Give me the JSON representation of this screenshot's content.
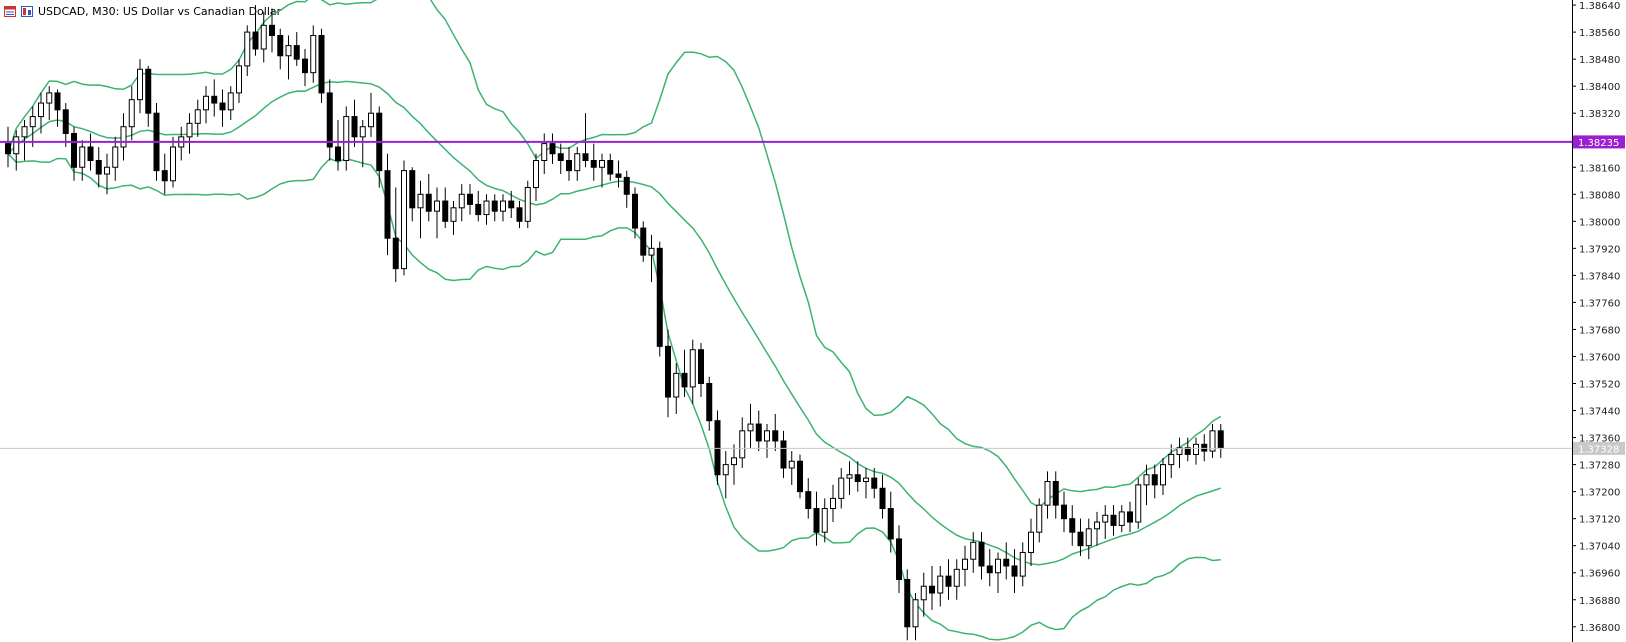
{
  "header": {
    "symbol": "USDCAD",
    "timeframe": "M30",
    "title": "USDCAD, M30:  US Dollar vs Canadian Dollar"
  },
  "colors": {
    "background": "#ffffff",
    "candle": "#000000",
    "bollinger": "#3cb371",
    "hline": "#9b1fd1",
    "current_price_line": "#c8c8c8"
  },
  "chart_data": {
    "type": "candlestick",
    "title": "",
    "xlabel": "",
    "ylabel": "",
    "ylim": [
      1.36755,
      1.38655
    ],
    "y_ticks": [
      "1.38640",
      "1.38560",
      "1.38480",
      "1.38400",
      "1.38320",
      "1.38160",
      "1.38080",
      "1.38000",
      "1.37920",
      "1.37840",
      "1.37760",
      "1.37680",
      "1.37600",
      "1.37520",
      "1.37440",
      "1.37360",
      "1.37280",
      "1.37200",
      "1.37120",
      "1.37040",
      "1.36960",
      "1.36880",
      "1.36800"
    ],
    "horizontal_line": {
      "price": 1.38235,
      "label": "1.38235"
    },
    "current_price": {
      "price": 1.37328,
      "label": "1.37328"
    },
    "indicator": "Bollinger Bands",
    "candles": [
      [
        1.3823,
        1.3828,
        1.3816,
        1.382
      ],
      [
        1.382,
        1.3827,
        1.3815,
        1.3825
      ],
      [
        1.3825,
        1.383,
        1.3818,
        1.3828
      ],
      [
        1.3828,
        1.3834,
        1.3822,
        1.3831
      ],
      [
        1.3831,
        1.3838,
        1.3826,
        1.3835
      ],
      [
        1.3835,
        1.384,
        1.383,
        1.3838
      ],
      [
        1.3838,
        1.3839,
        1.3828,
        1.3833
      ],
      [
        1.3833,
        1.3835,
        1.3822,
        1.3826
      ],
      [
        1.3826,
        1.3828,
        1.3812,
        1.3816
      ],
      [
        1.3816,
        1.3824,
        1.3812,
        1.3822
      ],
      [
        1.3822,
        1.3826,
        1.3815,
        1.3818
      ],
      [
        1.3818,
        1.3822,
        1.381,
        1.3814
      ],
      [
        1.3814,
        1.382,
        1.3808,
        1.3816
      ],
      [
        1.3816,
        1.3825,
        1.3812,
        1.3822
      ],
      [
        1.3822,
        1.3832,
        1.3818,
        1.3828
      ],
      [
        1.3828,
        1.384,
        1.3824,
        1.3836
      ],
      [
        1.3836,
        1.3848,
        1.3832,
        1.3845
      ],
      [
        1.3845,
        1.3846,
        1.3828,
        1.3832
      ],
      [
        1.3832,
        1.3835,
        1.3812,
        1.3815
      ],
      [
        1.3815,
        1.382,
        1.3808,
        1.3812
      ],
      [
        1.3812,
        1.3825,
        1.381,
        1.3822
      ],
      [
        1.3822,
        1.3828,
        1.3818,
        1.3825
      ],
      [
        1.3825,
        1.3832,
        1.382,
        1.3829
      ],
      [
        1.3829,
        1.3836,
        1.3825,
        1.3833
      ],
      [
        1.3833,
        1.384,
        1.3829,
        1.3837
      ],
      [
        1.3837,
        1.3842,
        1.3831,
        1.3835
      ],
      [
        1.3835,
        1.3839,
        1.3828,
        1.3833
      ],
      [
        1.3833,
        1.384,
        1.383,
        1.3838
      ],
      [
        1.3838,
        1.3848,
        1.3835,
        1.3846
      ],
      [
        1.3846,
        1.3858,
        1.3843,
        1.3856
      ],
      [
        1.3856,
        1.3864,
        1.3849,
        1.3851
      ],
      [
        1.3851,
        1.3862,
        1.3847,
        1.3858
      ],
      [
        1.3858,
        1.3863,
        1.385,
        1.3855
      ],
      [
        1.3855,
        1.3857,
        1.3845,
        1.3849
      ],
      [
        1.3849,
        1.3855,
        1.3842,
        1.3852
      ],
      [
        1.3852,
        1.3856,
        1.3846,
        1.3848
      ],
      [
        1.3848,
        1.3851,
        1.384,
        1.3844
      ],
      [
        1.3844,
        1.3858,
        1.3841,
        1.3855
      ],
      [
        1.3855,
        1.3857,
        1.3835,
        1.3838
      ],
      [
        1.3838,
        1.3842,
        1.3818,
        1.3822
      ],
      [
        1.3822,
        1.383,
        1.3815,
        1.3818
      ],
      [
        1.3818,
        1.3834,
        1.3815,
        1.3831
      ],
      [
        1.3831,
        1.3836,
        1.3822,
        1.3825
      ],
      [
        1.3825,
        1.383,
        1.3816,
        1.3828
      ],
      [
        1.3828,
        1.3838,
        1.3825,
        1.3832
      ],
      [
        1.3832,
        1.3834,
        1.381,
        1.3815
      ],
      [
        1.3815,
        1.382,
        1.379,
        1.3795
      ],
      [
        1.3795,
        1.381,
        1.3782,
        1.3786
      ],
      [
        1.3786,
        1.3818,
        1.3784,
        1.3815
      ],
      [
        1.3815,
        1.3816,
        1.38,
        1.3804
      ],
      [
        1.3804,
        1.3812,
        1.3795,
        1.3808
      ],
      [
        1.3808,
        1.3814,
        1.38,
        1.3803
      ],
      [
        1.3803,
        1.381,
        1.3795,
        1.3806
      ],
      [
        1.3806,
        1.381,
        1.3798,
        1.38
      ],
      [
        1.38,
        1.3806,
        1.3796,
        1.3804
      ],
      [
        1.3804,
        1.3811,
        1.38,
        1.3808
      ],
      [
        1.3808,
        1.3811,
        1.3802,
        1.3805
      ],
      [
        1.3805,
        1.3809,
        1.38,
        1.3802
      ],
      [
        1.3802,
        1.3808,
        1.3799,
        1.3806
      ],
      [
        1.3806,
        1.3808,
        1.38,
        1.3803
      ],
      [
        1.3803,
        1.3808,
        1.38,
        1.3806
      ],
      [
        1.3806,
        1.3809,
        1.3801,
        1.3804
      ],
      [
        1.3804,
        1.3806,
        1.3798,
        1.38
      ],
      [
        1.38,
        1.3812,
        1.3798,
        1.381
      ],
      [
        1.381,
        1.382,
        1.3806,
        1.3818
      ],
      [
        1.3818,
        1.3826,
        1.3814,
        1.3823
      ],
      [
        1.3823,
        1.3826,
        1.3817,
        1.382
      ],
      [
        1.382,
        1.3823,
        1.3814,
        1.3818
      ],
      [
        1.3818,
        1.3822,
        1.3812,
        1.3815
      ],
      [
        1.3815,
        1.3822,
        1.3812,
        1.382
      ],
      [
        1.382,
        1.3832,
        1.3816,
        1.3818
      ],
      [
        1.3818,
        1.3823,
        1.3812,
        1.3816
      ],
      [
        1.3816,
        1.382,
        1.381,
        1.3818
      ],
      [
        1.3818,
        1.382,
        1.3812,
        1.3814
      ],
      [
        1.3814,
        1.3818,
        1.381,
        1.3813
      ],
      [
        1.3813,
        1.3815,
        1.3804,
        1.3808
      ],
      [
        1.3808,
        1.381,
        1.3795,
        1.3798
      ],
      [
        1.3798,
        1.38,
        1.3788,
        1.379
      ],
      [
        1.379,
        1.3796,
        1.3782,
        1.3792
      ],
      [
        1.3792,
        1.3794,
        1.376,
        1.3763
      ],
      [
        1.3763,
        1.3768,
        1.3742,
        1.3748
      ],
      [
        1.3748,
        1.3758,
        1.3743,
        1.3755
      ],
      [
        1.3755,
        1.3762,
        1.3748,
        1.3751
      ],
      [
        1.3751,
        1.3765,
        1.3746,
        1.3762
      ],
      [
        1.3762,
        1.3764,
        1.3748,
        1.3752
      ],
      [
        1.3752,
        1.3754,
        1.3738,
        1.3741
      ],
      [
        1.3741,
        1.3744,
        1.3722,
        1.3725
      ],
      [
        1.3725,
        1.3732,
        1.3718,
        1.3728
      ],
      [
        1.3728,
        1.3734,
        1.3722,
        1.373
      ],
      [
        1.373,
        1.3742,
        1.3727,
        1.3738
      ],
      [
        1.3738,
        1.3746,
        1.3733,
        1.374
      ],
      [
        1.374,
        1.3744,
        1.3732,
        1.3735
      ],
      [
        1.3735,
        1.374,
        1.373,
        1.3738
      ],
      [
        1.3738,
        1.3743,
        1.3732,
        1.3735
      ],
      [
        1.3735,
        1.3738,
        1.3724,
        1.3727
      ],
      [
        1.3727,
        1.3732,
        1.3722,
        1.3729
      ],
      [
        1.3729,
        1.3731,
        1.3718,
        1.372
      ],
      [
        1.372,
        1.3724,
        1.3712,
        1.3715
      ],
      [
        1.3715,
        1.372,
        1.3704,
        1.3708
      ],
      [
        1.3708,
        1.3718,
        1.3705,
        1.3715
      ],
      [
        1.3715,
        1.3722,
        1.3711,
        1.3718
      ],
      [
        1.3718,
        1.3727,
        1.3715,
        1.3724
      ],
      [
        1.3724,
        1.3729,
        1.3719,
        1.3725
      ],
      [
        1.3725,
        1.3729,
        1.372,
        1.3723
      ],
      [
        1.3723,
        1.3727,
        1.3718,
        1.3724
      ],
      [
        1.3724,
        1.3727,
        1.3718,
        1.3721
      ],
      [
        1.3721,
        1.3725,
        1.3712,
        1.3715
      ],
      [
        1.3715,
        1.372,
        1.3702,
        1.3706
      ],
      [
        1.3706,
        1.371,
        1.369,
        1.3694
      ],
      [
        1.3694,
        1.3697,
        1.3676,
        1.368
      ],
      [
        1.368,
        1.369,
        1.3676,
        1.3688
      ],
      [
        1.3688,
        1.3696,
        1.3683,
        1.3692
      ],
      [
        1.3692,
        1.3698,
        1.3685,
        1.369
      ],
      [
        1.369,
        1.3698,
        1.3686,
        1.3695
      ],
      [
        1.3695,
        1.37,
        1.3688,
        1.3692
      ],
      [
        1.3692,
        1.37,
        1.3688,
        1.3697
      ],
      [
        1.3697,
        1.3704,
        1.3692,
        1.37
      ],
      [
        1.37,
        1.3708,
        1.3696,
        1.3705
      ],
      [
        1.3705,
        1.3708,
        1.3694,
        1.3698
      ],
      [
        1.3698,
        1.3703,
        1.3692,
        1.3696
      ],
      [
        1.3696,
        1.3702,
        1.369,
        1.37
      ],
      [
        1.37,
        1.3705,
        1.3694,
        1.3698
      ],
      [
        1.3698,
        1.3703,
        1.369,
        1.3695
      ],
      [
        1.3695,
        1.3705,
        1.3692,
        1.3702
      ],
      [
        1.3702,
        1.3712,
        1.3698,
        1.3708
      ],
      [
        1.3708,
        1.3718,
        1.3705,
        1.3716
      ],
      [
        1.3716,
        1.3726,
        1.3712,
        1.3723
      ],
      [
        1.3723,
        1.3726,
        1.3712,
        1.3716
      ],
      [
        1.3716,
        1.372,
        1.3708,
        1.3712
      ],
      [
        1.3712,
        1.3716,
        1.3704,
        1.3708
      ],
      [
        1.3708,
        1.3712,
        1.3701,
        1.3704
      ],
      [
        1.3704,
        1.3712,
        1.37,
        1.3709
      ],
      [
        1.3709,
        1.3714,
        1.3704,
        1.3711
      ],
      [
        1.3711,
        1.3716,
        1.3706,
        1.3713
      ],
      [
        1.3713,
        1.3716,
        1.3707,
        1.371
      ],
      [
        1.371,
        1.3716,
        1.3708,
        1.3714
      ],
      [
        1.3714,
        1.3717,
        1.3708,
        1.3711
      ],
      [
        1.3711,
        1.3724,
        1.3709,
        1.3722
      ],
      [
        1.3722,
        1.3728,
        1.3716,
        1.3725
      ],
      [
        1.3725,
        1.3728,
        1.3718,
        1.3722
      ],
      [
        1.3722,
        1.373,
        1.3719,
        1.3728
      ],
      [
        1.3728,
        1.3734,
        1.3724,
        1.3731
      ],
      [
        1.3731,
        1.3736,
        1.3727,
        1.3733
      ],
      [
        1.3733,
        1.3736,
        1.3729,
        1.3731
      ],
      [
        1.3731,
        1.3736,
        1.3728,
        1.3734
      ],
      [
        1.3734,
        1.3737,
        1.3729,
        1.3732
      ],
      [
        1.3732,
        1.374,
        1.373,
        1.3738
      ],
      [
        1.3738,
        1.374,
        1.373,
        1.3733
      ]
    ],
    "bollinger": {
      "period": 20,
      "deviation": 2
    }
  }
}
